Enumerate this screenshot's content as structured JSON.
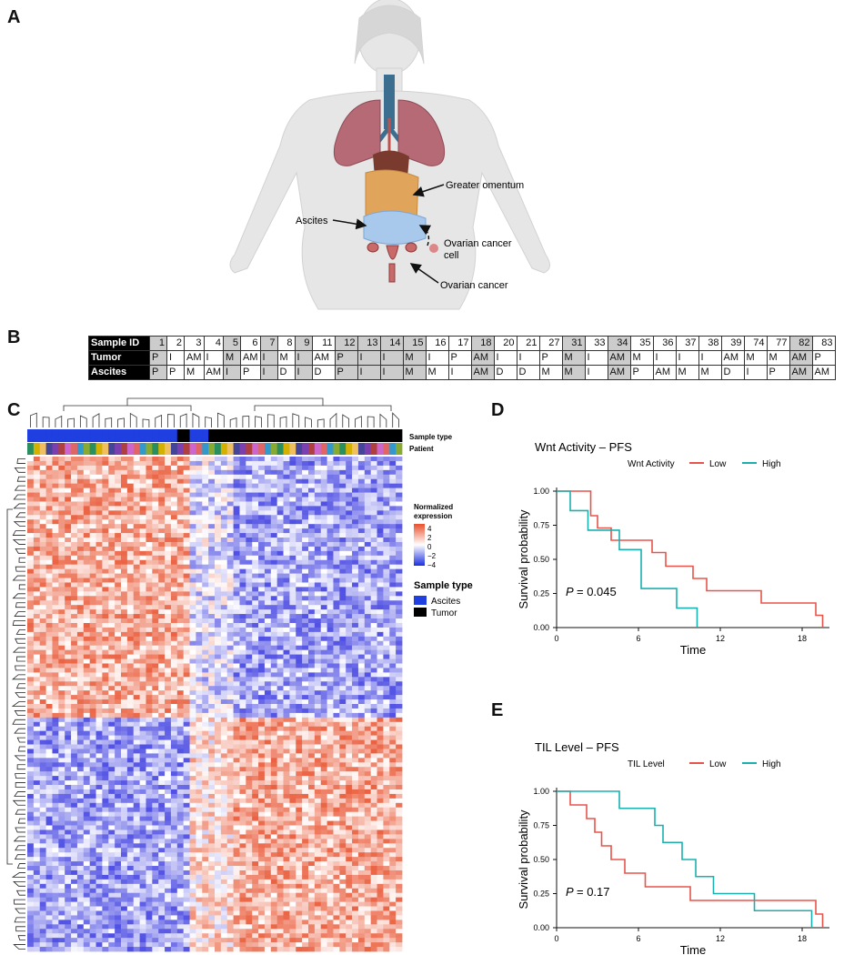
{
  "panels": {
    "A": "A",
    "B": "B",
    "C": "C",
    "D": "D",
    "E": "E"
  },
  "anatomy": {
    "labels": {
      "omentum": "Greater omentum",
      "ascites": "Ascites",
      "ovarian_cell_1": "Ovarian cancer",
      "ovarian_cell_2": "cell",
      "ovarian_cancer": "Ovarian cancer"
    }
  },
  "sample_table": {
    "row_headers": [
      "Sample ID",
      "Tumor",
      "Ascites"
    ],
    "columns": [
      {
        "id": "1",
        "tumor": "P",
        "ascites": "P",
        "shade": true
      },
      {
        "id": "2",
        "tumor": "I",
        "ascites": "P",
        "shade": false
      },
      {
        "id": "3",
        "tumor": "AM",
        "ascites": "M",
        "shade": false
      },
      {
        "id": "4",
        "tumor": "I",
        "ascites": "AM",
        "shade": false
      },
      {
        "id": "5",
        "tumor": "M",
        "ascites": "I",
        "shade": true
      },
      {
        "id": "6",
        "tumor": "AM",
        "ascites": "P",
        "shade": false
      },
      {
        "id": "7",
        "tumor": "I",
        "ascites": "I",
        "shade": true
      },
      {
        "id": "8",
        "tumor": "M",
        "ascites": "D",
        "shade": false
      },
      {
        "id": "9",
        "tumor": "I",
        "ascites": "I",
        "shade": true
      },
      {
        "id": "11",
        "tumor": "AM",
        "ascites": "D",
        "shade": false
      },
      {
        "id": "12",
        "tumor": "P",
        "ascites": "P",
        "shade": true
      },
      {
        "id": "13",
        "tumor": "I",
        "ascites": "I",
        "shade": true
      },
      {
        "id": "14",
        "tumor": "I",
        "ascites": "I",
        "shade": true
      },
      {
        "id": "15",
        "tumor": "M",
        "ascites": "M",
        "shade": true
      },
      {
        "id": "16",
        "tumor": "I",
        "ascites": "M",
        "shade": false
      },
      {
        "id": "17",
        "tumor": "P",
        "ascites": "I",
        "shade": false
      },
      {
        "id": "18",
        "tumor": "AM",
        "ascites": "AM",
        "shade": true
      },
      {
        "id": "20",
        "tumor": "I",
        "ascites": "D",
        "shade": false
      },
      {
        "id": "21",
        "tumor": "I",
        "ascites": "D",
        "shade": false
      },
      {
        "id": "27",
        "tumor": "P",
        "ascites": "M",
        "shade": false
      },
      {
        "id": "31",
        "tumor": "M",
        "ascites": "M",
        "shade": true
      },
      {
        "id": "33",
        "tumor": "I",
        "ascites": "I",
        "shade": false
      },
      {
        "id": "34",
        "tumor": "AM",
        "ascites": "AM",
        "shade": true
      },
      {
        "id": "35",
        "tumor": "M",
        "ascites": "P",
        "shade": false
      },
      {
        "id": "36",
        "tumor": "I",
        "ascites": "AM",
        "shade": false
      },
      {
        "id": "37",
        "tumor": "I",
        "ascites": "M",
        "shade": false
      },
      {
        "id": "38",
        "tumor": "I",
        "ascites": "M",
        "shade": false
      },
      {
        "id": "39",
        "tumor": "AM",
        "ascites": "D",
        "shade": false
      },
      {
        "id": "74",
        "tumor": "M",
        "ascites": "I",
        "shade": false
      },
      {
        "id": "77",
        "tumor": "M",
        "ascites": "P",
        "shade": false
      },
      {
        "id": "82",
        "tumor": "AM",
        "ascites": "AM",
        "shade": true
      },
      {
        "id": "83",
        "tumor": "P",
        "ascites": "AM",
        "shade": false
      }
    ]
  },
  "heatmap": {
    "annotation_labels": [
      "Sample type",
      "Patient"
    ],
    "legend_title_1": "Normalized",
    "legend_title_2": "expression",
    "legend_ticks": [
      "4",
      "2",
      "0",
      "−2",
      "−4"
    ],
    "sample_type_title": "Sample type",
    "sample_types": [
      {
        "name": "Ascites",
        "color": "#1f3fe0"
      },
      {
        "name": "Tumor",
        "color": "#000000"
      }
    ],
    "colors": {
      "high": "#e8502c",
      "mid": "#ffffff",
      "low": "#3b3be0"
    }
  },
  "chart_data": [
    {
      "type": "line",
      "title": "Wnt Activity – PFS",
      "legend_title": "Wnt Activity",
      "legend_position": "top",
      "xlabel": "Time",
      "ylabel": "Survival probability",
      "xlim": [
        0,
        20
      ],
      "ylim": [
        0,
        1
      ],
      "xticks": [
        "0",
        "6",
        "12",
        "18"
      ],
      "xtick_values": [
        0,
        6,
        12,
        18
      ],
      "yticks": [
        "0.00",
        "0.25",
        "0.50",
        "0.75",
        "1.00"
      ],
      "ytick_values": [
        0,
        0.25,
        0.5,
        0.75,
        1
      ],
      "p_label": "P",
      "p_value": "= 0.045",
      "series": [
        {
          "name": "Low",
          "color": "#e8534a",
          "x": [
            0,
            2.5,
            3,
            4,
            7,
            8,
            10,
            11,
            15,
            19,
            19.5
          ],
          "y": [
            1,
            0.82,
            0.73,
            0.64,
            0.55,
            0.45,
            0.36,
            0.27,
            0.18,
            0.09,
            0.0
          ]
        },
        {
          "name": "High",
          "color": "#1ab0b0",
          "x": [
            0,
            1,
            2.3,
            4.6,
            6.2,
            8.8,
            10.3
          ],
          "y": [
            1,
            0.857,
            0.714,
            0.571,
            0.286,
            0.143,
            0.0
          ]
        }
      ]
    },
    {
      "type": "line",
      "title": "TIL Level – PFS",
      "legend_title": "TIL Level",
      "legend_position": "top",
      "xlabel": "Time",
      "ylabel": "Survival probability",
      "xlim": [
        0,
        20
      ],
      "ylim": [
        0,
        1
      ],
      "xticks": [
        "0",
        "6",
        "12",
        "18"
      ],
      "xtick_values": [
        0,
        6,
        12,
        18
      ],
      "yticks": [
        "0.00",
        "0.25",
        "0.50",
        "0.75",
        "1.00"
      ],
      "ytick_values": [
        0,
        0.25,
        0.5,
        0.75,
        1
      ],
      "p_label": "P",
      "p_value": "= 0.17",
      "series": [
        {
          "name": "Low",
          "color": "#e8534a",
          "x": [
            0,
            1,
            2.2,
            2.8,
            3.3,
            4,
            5,
            6.5,
            9.8,
            19,
            19.5
          ],
          "y": [
            1,
            0.9,
            0.8,
            0.7,
            0.6,
            0.5,
            0.4,
            0.3,
            0.2,
            0.1,
            0.0
          ]
        },
        {
          "name": "High",
          "color": "#1ab0b0",
          "x": [
            0,
            4.6,
            7.2,
            7.8,
            9.2,
            10.2,
            11.5,
            14.5,
            18.7
          ],
          "y": [
            1,
            0.875,
            0.75,
            0.625,
            0.5,
            0.375,
            0.25,
            0.125,
            0.0
          ]
        }
      ]
    }
  ]
}
